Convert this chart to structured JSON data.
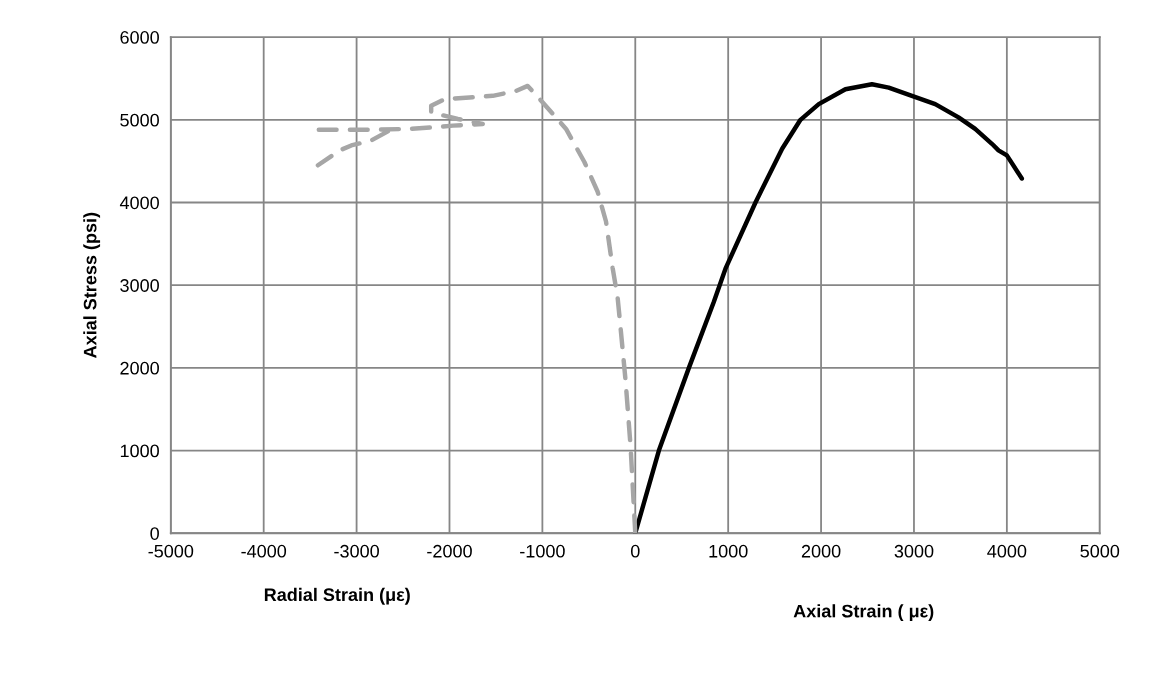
{
  "chart_data": {
    "type": "line",
    "xlabel": "Radial Strain (με)",
    "ylabel": "Axial Stress (psi)",
    "annotations": [
      "Axial Strain ( με)"
    ],
    "xlim": [
      -5000,
      5000
    ],
    "xticks": [
      -5000,
      -4000,
      -3000,
      -2000,
      -1000,
      0,
      1000,
      2000,
      3000,
      4000,
      5000
    ],
    "ylim": [
      0,
      6000
    ],
    "yticks": [
      0,
      1000,
      2000,
      3000,
      4000,
      5000,
      6000
    ],
    "grid": true,
    "series": [
      {
        "color": "#000000",
        "line_style": "solid",
        "x": [
          0,
          254,
          577,
          846,
          971,
          1294,
          1581,
          1778,
          1975,
          2262,
          2548,
          2728,
          2978,
          3229,
          3480,
          3659,
          3839,
          3910,
          4000,
          4161
        ],
        "values": [
          0,
          1000,
          2000,
          2800,
          3200,
          4000,
          4650,
          5000,
          5190,
          5370,
          5430,
          5390,
          5290,
          5190,
          5030,
          4890,
          4710,
          4630,
          4570,
          4290
        ]
      },
      {
        "color": "#a6a6a6",
        "line_style": "dashed",
        "x": [
          0,
          -50,
          -104,
          -158,
          -190,
          -244,
          -315,
          -405,
          -548,
          -745,
          -996,
          -1158,
          -1283,
          -1534,
          -1785,
          -2050,
          -2197,
          -2197,
          -1910,
          -1642,
          -1964,
          -2161,
          -2430,
          -2824,
          -3111,
          -3254,
          -3523,
          null,
          -2663,
          -2842,
          -3057,
          -3183,
          -3416
        ],
        "values": [
          0,
          1040,
          1840,
          2480,
          2850,
          3210,
          3770,
          4130,
          4490,
          4890,
          5210,
          5410,
          5350,
          5290,
          5270,
          5250,
          5170,
          5090,
          5010,
          4950,
          4930,
          4910,
          4890,
          4880,
          4880,
          4880,
          4880,
          null,
          4860,
          4750,
          4690,
          4630,
          4450
        ]
      }
    ]
  }
}
